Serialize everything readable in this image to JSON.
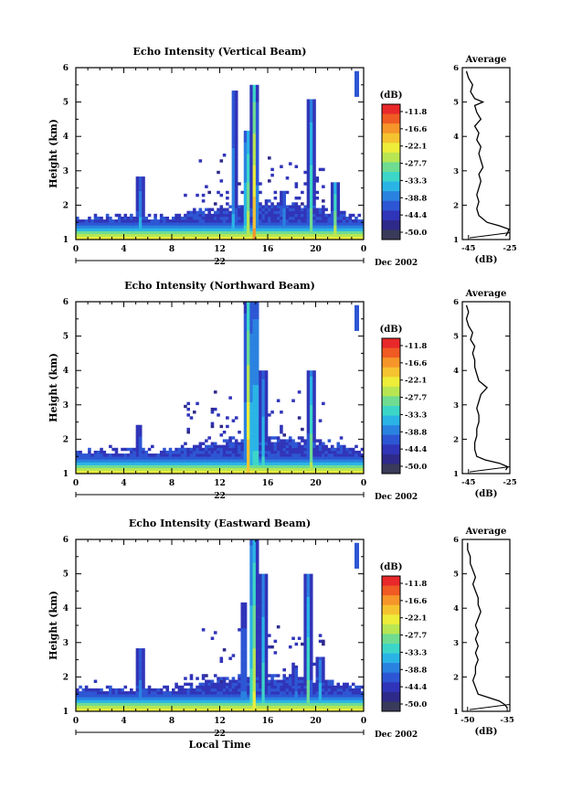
{
  "chart_data": [
    {
      "type": "heatmap",
      "title": "Echo Intensity (Vertical Beam)",
      "ylabel": "Height (km)",
      "xlabel": "",
      "x_ticks": [
        "0",
        "4",
        "8",
        "12",
        "16",
        "20",
        "0"
      ],
      "y_ticks": [
        "1",
        "2",
        "3",
        "4",
        "5",
        "6"
      ],
      "xlim": [
        0,
        24
      ],
      "ylim": [
        1,
        6
      ],
      "date_day": "22",
      "date_month": "Dec 2002",
      "colorbar": {
        "unit": "(dB)",
        "ticks": [
          "-11.8",
          "-16.6",
          "-22.1",
          "-27.7",
          "-33.3",
          "-38.8",
          "-44.4",
          "-50.0"
        ]
      },
      "spikes": [
        {
          "t": 5.4,
          "top": 2.8,
          "w": 0.35,
          "i": 0.45
        },
        {
          "t": 14.3,
          "top": 4.2,
          "w": 0.4,
          "i": 0.8
        },
        {
          "t": 14.9,
          "top": 5.5,
          "w": 0.35,
          "i": 0.9
        },
        {
          "t": 13.2,
          "top": 5.3,
          "w": 0.3,
          "i": 0.5
        },
        {
          "t": 17.3,
          "top": 2.4,
          "w": 0.3,
          "i": 0.5
        },
        {
          "t": 19.6,
          "top": 5.1,
          "w": 0.35,
          "i": 0.6
        },
        {
          "t": 21.6,
          "top": 2.7,
          "w": 0.35,
          "i": 0.7
        }
      ],
      "average": {
        "title": "Average",
        "xlabel": "(dB)",
        "x_ticks": [
          "-45",
          "-25"
        ],
        "xlim": [
          -48,
          -25
        ],
        "height_km": [
          1.1,
          1.2,
          1.3,
          1.4,
          1.5,
          1.7,
          1.9,
          2.1,
          2.3,
          2.5,
          2.7,
          2.9,
          3.1,
          3.3,
          3.5,
          3.7,
          3.9,
          4.1,
          4.3,
          4.5,
          4.7,
          4.9,
          5.0,
          5.1,
          5.3,
          5.5,
          5.7,
          5.9
        ],
        "db": [
          -27,
          -26,
          -25.5,
          -30,
          -36,
          -40,
          -41,
          -40,
          -41,
          -40,
          -39,
          -40,
          -38,
          -39,
          -40,
          -39,
          -41,
          -40,
          -42,
          -39,
          -41,
          -42,
          -38,
          -42,
          -44,
          -43,
          -45,
          -46
        ]
      }
    },
    {
      "type": "heatmap",
      "title": "Echo Intensity (Northward Beam)",
      "ylabel": "Height (km)",
      "xlabel": "",
      "x_ticks": [
        "0",
        "4",
        "8",
        "12",
        "16",
        "20",
        "0"
      ],
      "y_ticks": [
        "1",
        "2",
        "3",
        "4",
        "5",
        "6"
      ],
      "xlim": [
        0,
        24
      ],
      "ylim": [
        1,
        6
      ],
      "date_day": "22",
      "date_month": "Dec 2002",
      "colorbar": {
        "unit": "(dB)",
        "ticks": [
          "-11.8",
          "-16.6",
          "-22.1",
          "-27.7",
          "-33.3",
          "-38.8",
          "-44.4",
          "-50.0"
        ]
      },
      "spikes": [
        {
          "t": 5.3,
          "top": 2.4,
          "w": 0.3,
          "i": 0.4
        },
        {
          "t": 14.4,
          "top": 6.0,
          "w": 0.45,
          "i": 0.85
        },
        {
          "t": 15.0,
          "top": 6.0,
          "w": 0.35,
          "i": 0.7
        },
        {
          "t": 15.6,
          "top": 4.0,
          "w": 0.3,
          "i": 0.5
        },
        {
          "t": 19.6,
          "top": 4.0,
          "w": 0.35,
          "i": 0.65
        }
      ],
      "average": {
        "title": "Average",
        "xlabel": "(dB)",
        "x_ticks": [
          "-45",
          "-25"
        ],
        "xlim": [
          -48,
          -25
        ],
        "height_km": [
          1.1,
          1.2,
          1.3,
          1.4,
          1.5,
          1.7,
          1.9,
          2.1,
          2.3,
          2.5,
          2.7,
          2.9,
          3.1,
          3.3,
          3.5,
          3.7,
          3.9,
          4.1,
          4.3,
          4.5,
          4.7,
          4.9,
          5.1,
          5.3,
          5.5,
          5.7,
          5.9
        ],
        "db": [
          -27,
          -26,
          -30,
          -37,
          -41,
          -42,
          -42,
          -41,
          -41,
          -40,
          -40,
          -41,
          -40,
          -39,
          -36,
          -40,
          -41,
          -42,
          -42,
          -43,
          -42,
          -44,
          -43,
          -45,
          -46,
          -45,
          -46
        ]
      }
    },
    {
      "type": "heatmap",
      "title": "Echo Intensity (Eastward Beam)",
      "ylabel": "Height (km)",
      "xlabel": "Local Time",
      "x_ticks": [
        "0",
        "4",
        "8",
        "12",
        "16",
        "20",
        "0"
      ],
      "y_ticks": [
        "1",
        "2",
        "3",
        "4",
        "5",
        "6"
      ],
      "xlim": [
        0,
        24
      ],
      "ylim": [
        1,
        6
      ],
      "date_day": "22",
      "date_month": "Dec 2002",
      "colorbar": {
        "unit": "(dB)",
        "ticks": [
          "-11.8",
          "-16.6",
          "-22.1",
          "-27.7",
          "-33.3",
          "-38.8",
          "-44.4",
          "-50.0"
        ]
      },
      "spikes": [
        {
          "t": 5.3,
          "top": 2.8,
          "w": 0.35,
          "i": 0.45
        },
        {
          "t": 14.0,
          "top": 4.2,
          "w": 0.3,
          "i": 0.5
        },
        {
          "t": 14.8,
          "top": 6.0,
          "w": 0.4,
          "i": 0.85
        },
        {
          "t": 15.6,
          "top": 5.0,
          "w": 0.3,
          "i": 0.55
        },
        {
          "t": 18.3,
          "top": 2.3,
          "w": 0.3,
          "i": 0.45
        },
        {
          "t": 19.4,
          "top": 5.0,
          "w": 0.35,
          "i": 0.6
        },
        {
          "t": 20.4,
          "top": 2.6,
          "w": 0.3,
          "i": 0.5
        }
      ],
      "average": {
        "title": "Average",
        "xlabel": "(dB)",
        "x_ticks": [
          "-50",
          "-35"
        ],
        "xlim": [
          -52,
          -34
        ],
        "height_km": [
          1.1,
          1.2,
          1.3,
          1.4,
          1.5,
          1.7,
          1.9,
          2.1,
          2.3,
          2.5,
          2.7,
          2.9,
          3.1,
          3.3,
          3.5,
          3.7,
          3.9,
          4.1,
          4.3,
          4.5,
          4.7,
          4.9,
          5.1,
          5.3,
          5.5,
          5.7,
          5.9
        ],
        "db": [
          -35,
          -36,
          -38,
          -42,
          -46,
          -47,
          -48,
          -47,
          -47,
          -46,
          -47,
          -46,
          -47,
          -46,
          -47,
          -46,
          -45,
          -46,
          -46,
          -47,
          -48,
          -47,
          -48,
          -49,
          -49,
          -50,
          -50
        ]
      }
    }
  ],
  "colorbar_colors": [
    "#e8282a",
    "#f05a23",
    "#f6952a",
    "#f6c330",
    "#eded3a",
    "#b8e652",
    "#6fdc91",
    "#3cd6c8",
    "#2ab4e6",
    "#2a82e0",
    "#2d56d4",
    "#3034b8",
    "#2e2a8a",
    "#3a3a5a"
  ]
}
